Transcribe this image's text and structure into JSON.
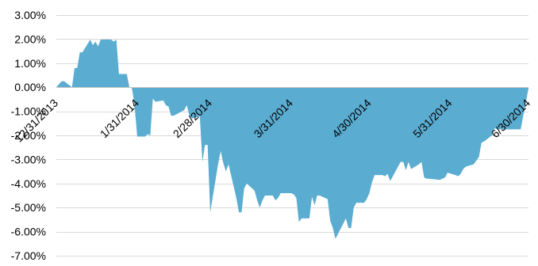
{
  "chart_data": {
    "type": "area",
    "title": "",
    "xlabel": "",
    "ylabel": "",
    "colors": {
      "fill": "#5aacd1",
      "gridline": "#d9d9d9"
    },
    "grid": true,
    "legend": "none",
    "ylim": [
      -0.07,
      0.03
    ],
    "xlim": [
      "2013-12-31",
      "2014-06-30"
    ],
    "y_tick_labels": [
      "3.00%",
      "2.00%",
      "1.00%",
      "0.00%",
      "-1.00%",
      "-2.00%",
      "-3.00%",
      "-4.00%",
      "-5.00%",
      "-6.00%",
      "-7.00%"
    ],
    "y_tick_values": [
      0.03,
      0.02,
      0.01,
      0.0,
      -0.01,
      -0.02,
      -0.03,
      -0.04,
      -0.05,
      -0.06,
      -0.07
    ],
    "x_tick_labels": [
      "12/31/2013",
      "1/31/2014",
      "2/28/2014",
      "3/31/2014",
      "4/30/2014",
      "5/31/2014",
      "6/30/2014"
    ],
    "x_tick_values": [
      "2013-12-31",
      "2014-01-31",
      "2014-02-28",
      "2014-03-31",
      "2014-04-30",
      "2014-05-31",
      "2014-06-30"
    ],
    "series": [
      {
        "x": [
          "2013-12-31",
          "2014-01-02",
          "2014-01-03",
          "2014-01-06",
          "2014-01-07",
          "2014-01-08",
          "2014-01-09",
          "2014-01-10",
          "2014-01-13",
          "2014-01-14",
          "2014-01-15",
          "2014-01-16",
          "2014-01-17",
          "2014-01-21",
          "2014-01-22",
          "2014-01-23",
          "2014-01-24",
          "2014-01-27",
          "2014-01-28",
          "2014-01-29",
          "2014-01-30",
          "2014-01-31",
          "2014-02-03",
          "2014-02-04",
          "2014-02-05",
          "2014-02-06",
          "2014-02-07",
          "2014-02-10",
          "2014-02-11",
          "2014-02-12",
          "2014-02-13",
          "2014-02-14",
          "2014-02-18",
          "2014-02-19",
          "2014-02-20",
          "2014-02-21",
          "2014-02-24",
          "2014-02-25",
          "2014-02-26",
          "2014-02-27",
          "2014-02-28",
          "2014-03-03",
          "2014-03-04",
          "2014-03-05",
          "2014-03-06",
          "2014-03-07",
          "2014-03-10",
          "2014-03-11",
          "2014-03-12",
          "2014-03-13",
          "2014-03-14",
          "2014-03-17",
          "2014-03-18",
          "2014-03-19",
          "2014-03-20",
          "2014-03-21",
          "2014-03-24",
          "2014-03-25",
          "2014-03-26",
          "2014-03-27",
          "2014-03-28",
          "2014-03-31",
          "2014-04-01",
          "2014-04-02",
          "2014-04-03",
          "2014-04-04",
          "2014-04-07",
          "2014-04-08",
          "2014-04-09",
          "2014-04-10",
          "2014-04-11",
          "2014-04-14",
          "2014-04-15",
          "2014-04-16",
          "2014-04-17",
          "2014-04-21",
          "2014-04-22",
          "2014-04-23",
          "2014-04-24",
          "2014-04-25",
          "2014-04-28",
          "2014-04-29",
          "2014-04-30",
          "2014-05-01",
          "2014-05-02",
          "2014-05-05",
          "2014-05-06",
          "2014-05-07",
          "2014-05-08",
          "2014-05-09",
          "2014-05-12",
          "2014-05-13",
          "2014-05-14",
          "2014-05-15",
          "2014-05-16",
          "2014-05-19",
          "2014-05-20",
          "2014-05-21",
          "2014-05-22",
          "2014-05-23",
          "2014-05-27",
          "2014-05-28",
          "2014-05-29",
          "2014-05-30",
          "2014-06-02",
          "2014-06-03",
          "2014-06-04",
          "2014-06-05",
          "2014-06-06",
          "2014-06-09",
          "2014-06-10",
          "2014-06-11",
          "2014-06-12",
          "2014-06-13",
          "2014-06-16",
          "2014-06-17",
          "2014-06-18",
          "2014-06-19",
          "2014-06-20",
          "2014-06-23",
          "2014-06-24",
          "2014-06-25",
          "2014-06-26",
          "2014-06-27",
          "2014-06-30"
        ],
        "values": [
          0.0,
          0.0025,
          0.0025,
          0.0,
          0.008,
          0.008,
          0.0145,
          0.0145,
          0.0198,
          0.0175,
          0.019,
          0.017,
          0.0198,
          0.0198,
          0.019,
          0.0198,
          0.0055,
          0.0055,
          0.0,
          -0.0005,
          -0.0075,
          -0.0205,
          -0.0205,
          -0.0195,
          -0.02,
          -0.0048,
          -0.006,
          -0.0055,
          -0.0075,
          -0.008,
          -0.0118,
          -0.0118,
          -0.0095,
          -0.0075,
          -0.0118,
          -0.013,
          -0.012,
          -0.031,
          -0.024,
          -0.024,
          -0.052,
          -0.032,
          -0.0265,
          -0.0315,
          -0.035,
          -0.032,
          -0.046,
          -0.052,
          -0.052,
          -0.042,
          -0.04,
          -0.043,
          -0.047,
          -0.05,
          -0.047,
          -0.045,
          -0.045,
          -0.047,
          -0.046,
          -0.044,
          -0.044,
          -0.044,
          -0.0445,
          -0.046,
          -0.056,
          -0.0545,
          -0.0545,
          -0.0455,
          -0.049,
          -0.045,
          -0.045,
          -0.0465,
          -0.0555,
          -0.0585,
          -0.063,
          -0.0545,
          -0.0585,
          -0.0585,
          -0.05,
          -0.048,
          -0.048,
          -0.0465,
          -0.044,
          -0.0395,
          -0.0365,
          -0.0365,
          -0.037,
          -0.036,
          -0.039,
          -0.037,
          -0.031,
          -0.031,
          -0.0345,
          -0.031,
          -0.034,
          -0.032,
          -0.031,
          -0.0375,
          -0.038,
          -0.038,
          -0.0385,
          -0.038,
          -0.0375,
          -0.0355,
          -0.0365,
          -0.037,
          -0.036,
          -0.034,
          -0.033,
          -0.032,
          -0.0305,
          -0.029,
          -0.023,
          -0.0225,
          -0.02,
          -0.017,
          -0.0175,
          -0.0175,
          -0.0175,
          -0.0175,
          -0.0175,
          -0.0175,
          -0.0175,
          -0.0175,
          -0.0005
        ]
      }
    ]
  }
}
